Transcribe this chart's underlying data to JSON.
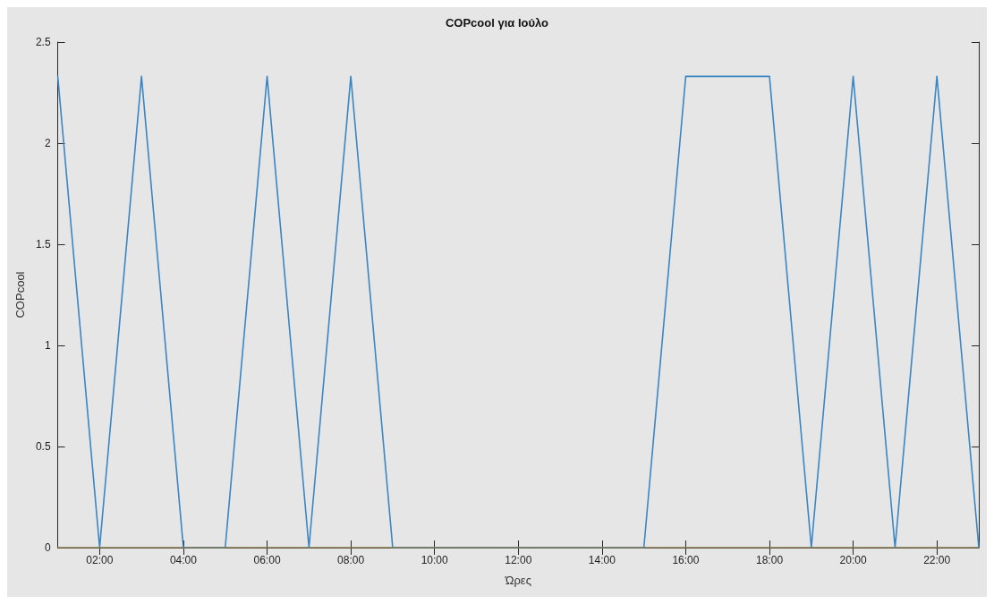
{
  "chart_data": {
    "type": "line",
    "title": "COPcool για Ιούλο",
    "xlabel": "Ώρες",
    "ylabel": "COPcool",
    "x": [
      1,
      2,
      3,
      4,
      5,
      6,
      7,
      8,
      9,
      10,
      11,
      12,
      13,
      14,
      15,
      16,
      17,
      18,
      19,
      20,
      21,
      22,
      23
    ],
    "series": [
      {
        "color": "#3a86c4",
        "values": [
          2.33,
          0,
          2.33,
          0,
          0,
          2.33,
          0,
          2.33,
          0,
          0,
          0,
          0,
          0,
          0,
          0,
          2.33,
          2.33,
          2.33,
          0,
          2.33,
          0,
          2.33,
          0
        ]
      },
      {
        "color": "#8c7d4f",
        "values": [
          0,
          0,
          0,
          0,
          0,
          0,
          0,
          0,
          0,
          0,
          0,
          0,
          0,
          0,
          0,
          0,
          0,
          0,
          0,
          0,
          0,
          0,
          0
        ]
      }
    ],
    "xlim": [
      1,
      23
    ],
    "xticks": [
      {
        "value": 2,
        "label": "02:00"
      },
      {
        "value": 4,
        "label": "04:00"
      },
      {
        "value": 6,
        "label": "06:00"
      },
      {
        "value": 8,
        "label": "08:00"
      },
      {
        "value": 10,
        "label": "10:00"
      },
      {
        "value": 12,
        "label": "12:00"
      },
      {
        "value": 14,
        "label": "14:00"
      },
      {
        "value": 16,
        "label": "16:00"
      },
      {
        "value": 18,
        "label": "18:00"
      },
      {
        "value": 20,
        "label": "20:00"
      },
      {
        "value": 22,
        "label": "22:00"
      }
    ],
    "ylim": [
      0,
      2.5
    ],
    "yticks": [
      0,
      0.5,
      1,
      1.5,
      2,
      2.5
    ],
    "grid": false,
    "line_style": "solid"
  }
}
